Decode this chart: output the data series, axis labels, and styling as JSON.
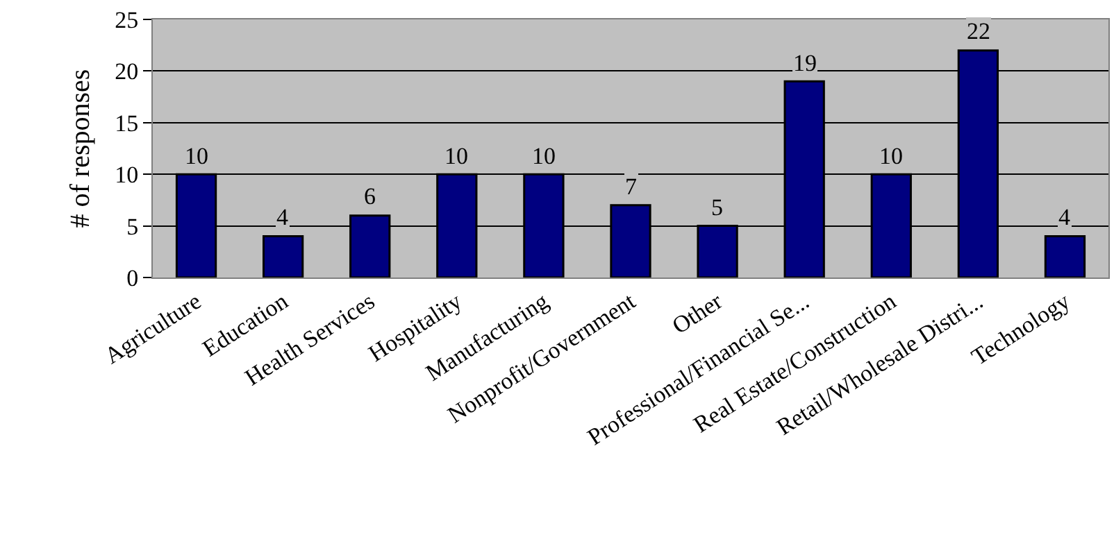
{
  "chart_data": {
    "type": "bar",
    "ylabel": "# of responses",
    "categories": [
      "Agriculture",
      "Education",
      "Health Services",
      "Hospitality",
      "Manufacturing",
      "Nonprofit/Government",
      "Other",
      "Professional/Financial Se...",
      "Real Estate/Construction",
      "Retail/Wholesale Distri...",
      "Technology"
    ],
    "values": [
      10,
      4,
      6,
      10,
      10,
      7,
      5,
      19,
      10,
      22,
      4
    ],
    "color": "#000080",
    "ylim": [
      0,
      25
    ],
    "yticks": [
      0,
      5,
      10,
      15,
      20,
      25
    ],
    "grid": "y",
    "data_labels": true,
    "legend": false
  }
}
